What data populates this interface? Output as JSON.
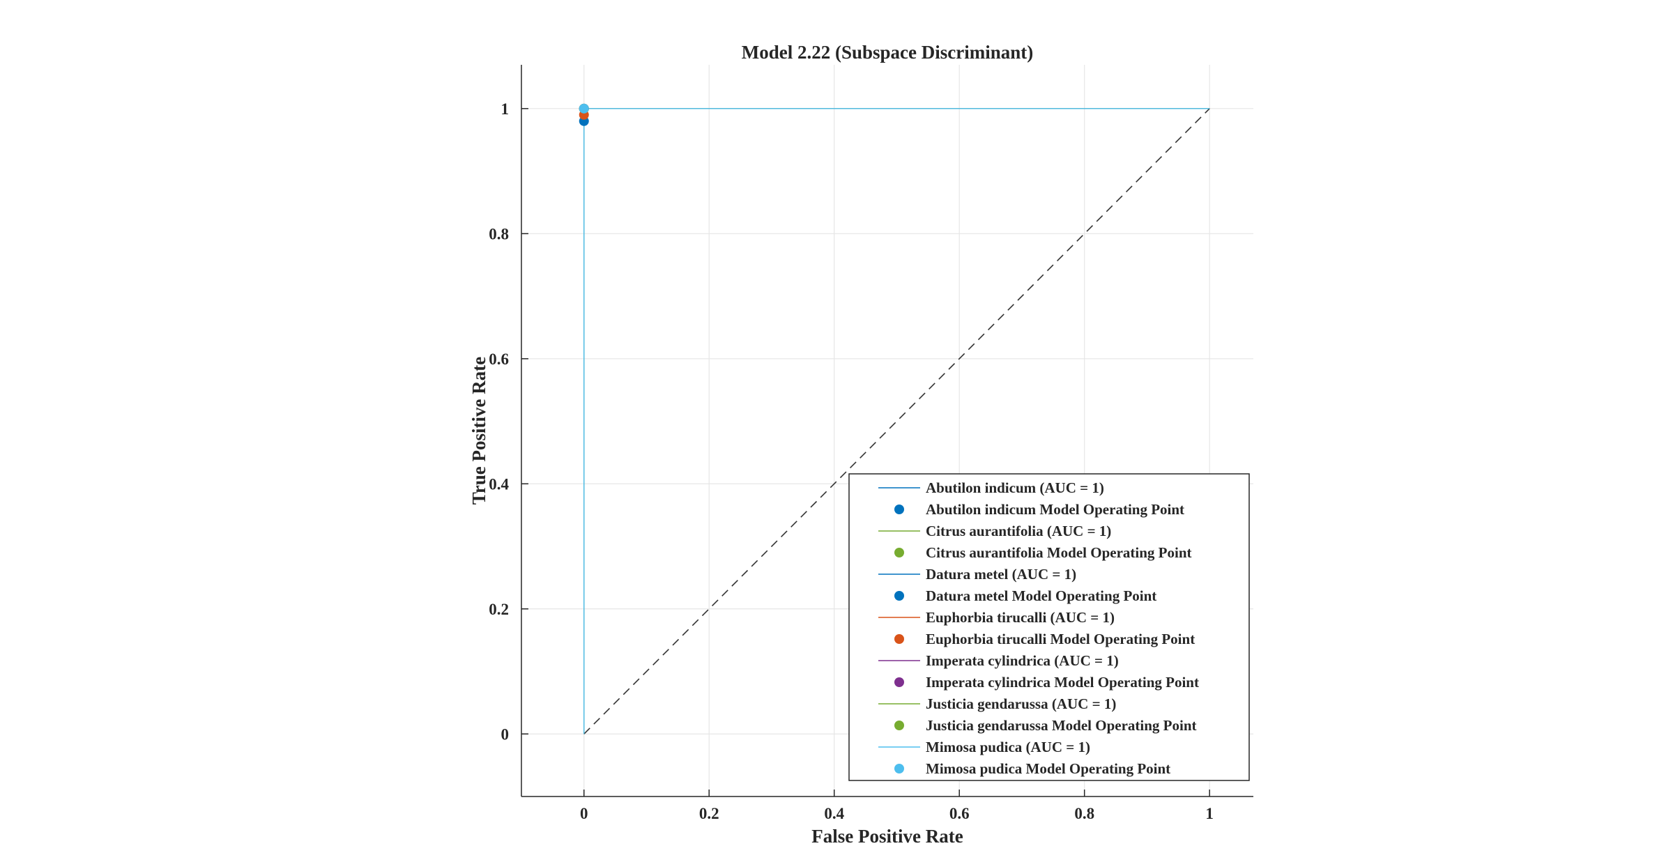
{
  "chart_data": {
    "type": "line",
    "title": "Model 2.22 (Subspace Discriminant)",
    "xlabel": "False Positive Rate",
    "ylabel": "True Positive Rate",
    "xlim": [
      -0.1,
      1.07
    ],
    "ylim": [
      -0.1,
      1.07
    ],
    "xticks": [
      0,
      0.2,
      0.4,
      0.6,
      0.8,
      1
    ],
    "yticks": [
      0,
      0.2,
      0.4,
      0.6,
      0.8,
      1
    ],
    "xtick_labels": [
      "0",
      "0.2",
      "0.4",
      "0.6",
      "0.8",
      "1"
    ],
    "ytick_labels": [
      "0",
      "0.2",
      "0.4",
      "0.6",
      "0.8",
      "1"
    ],
    "grid": true,
    "legend_position": "bottom-right",
    "reference_line": {
      "x": [
        0,
        1
      ],
      "y": [
        0,
        1
      ],
      "style": "dashed",
      "color": "#333333"
    },
    "series": [
      {
        "name": "Abutilon indicum (AUC = 1)",
        "kind": "curve",
        "color": "#0072BD",
        "x": [
          0,
          0,
          1
        ],
        "y": [
          0,
          1,
          1
        ]
      },
      {
        "name": "Abutilon indicum Model Operating Point",
        "kind": "point",
        "color": "#0072BD",
        "x": [
          0
        ],
        "y": [
          0.98
        ]
      },
      {
        "name": "Citrus aurantifolia (AUC = 1)",
        "kind": "curve",
        "color": "#77AC30",
        "x": [
          0,
          0,
          1
        ],
        "y": [
          0,
          1,
          1
        ]
      },
      {
        "name": "Citrus aurantifolia Model Operating Point",
        "kind": "point",
        "color": "#77AC30",
        "x": [
          0
        ],
        "y": [
          1
        ]
      },
      {
        "name": "Datura metel (AUC = 1)",
        "kind": "curve",
        "color": "#0072BD",
        "x": [
          0,
          0,
          1
        ],
        "y": [
          0,
          1,
          1
        ]
      },
      {
        "name": "Datura metel Model Operating Point",
        "kind": "point",
        "color": "#0072BD",
        "x": [
          0
        ],
        "y": [
          1
        ]
      },
      {
        "name": "Euphorbia tirucalli (AUC = 1)",
        "kind": "curve",
        "color": "#D95319",
        "x": [
          0,
          0,
          1
        ],
        "y": [
          0,
          1,
          1
        ]
      },
      {
        "name": "Euphorbia tirucalli Model Operating Point",
        "kind": "point",
        "color": "#D95319",
        "x": [
          0
        ],
        "y": [
          0.99
        ]
      },
      {
        "name": "Imperata cylindrica (AUC = 1)",
        "kind": "curve",
        "color": "#7E2F8E",
        "x": [
          0,
          0,
          1
        ],
        "y": [
          0,
          1,
          1
        ]
      },
      {
        "name": "Imperata cylindrica Model Operating Point",
        "kind": "point",
        "color": "#7E2F8E",
        "x": [
          0
        ],
        "y": [
          1
        ]
      },
      {
        "name": "Justicia gendarussa (AUC = 1)",
        "kind": "curve",
        "color": "#77AC30",
        "x": [
          0,
          0,
          1
        ],
        "y": [
          0,
          1,
          1
        ]
      },
      {
        "name": "Justicia gendarussa Model Operating Point",
        "kind": "point",
        "color": "#77AC30",
        "x": [
          0
        ],
        "y": [
          1
        ]
      },
      {
        "name": "Mimosa pudica (AUC = 1)",
        "kind": "curve",
        "color": "#4DBEEE",
        "x": [
          0,
          0,
          1
        ],
        "y": [
          0,
          1,
          1
        ]
      },
      {
        "name": "Mimosa pudica Model Operating Point",
        "kind": "point",
        "color": "#4DBEEE",
        "x": [
          0
        ],
        "y": [
          1
        ]
      }
    ]
  }
}
